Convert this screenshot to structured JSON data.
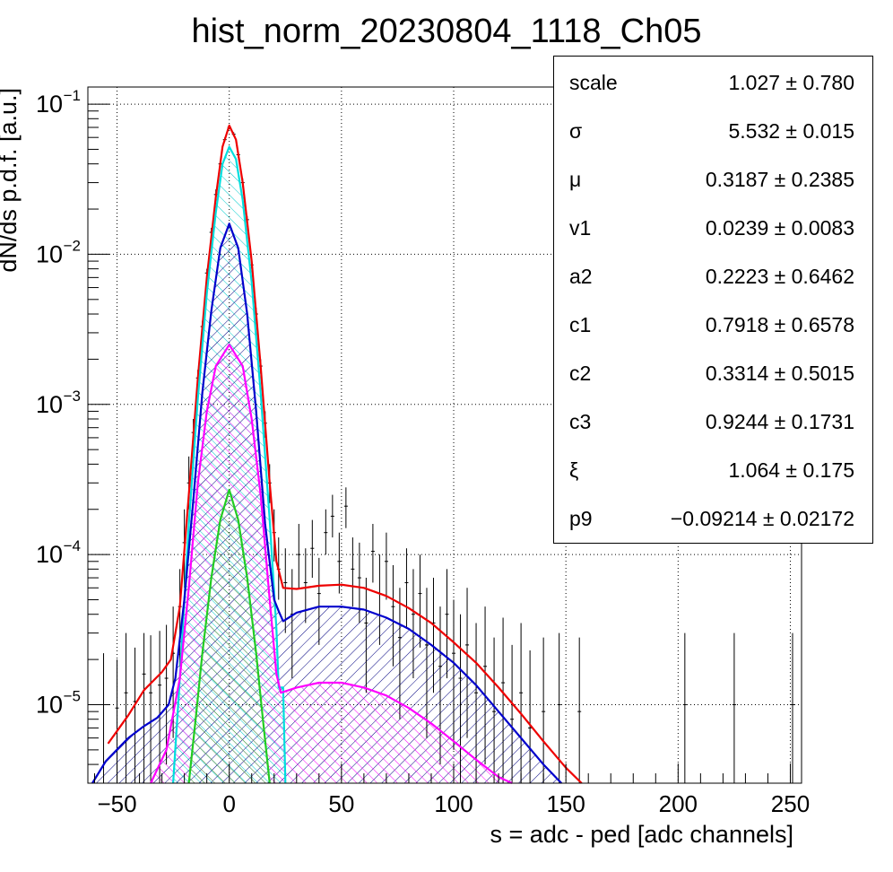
{
  "chart_data": {
    "type": "histogram-fit",
    "title": "hist_norm_20230804_1118_Ch05",
    "xlabel": "s = adc - ped [adc channels]",
    "ylabel": "dN/ds p.d.f. [a.u.]",
    "xlim": [
      -63,
      255
    ],
    "ylim": [
      3e-06,
      0.13
    ],
    "yscale": "log",
    "grid": true,
    "x_ticks": [
      -50,
      0,
      50,
      100,
      150,
      200,
      250
    ],
    "y_ticks": [
      {
        "value": 1e-05,
        "base": "10",
        "exp": "−5"
      },
      {
        "value": 0.0001,
        "base": "10",
        "exp": "−4"
      },
      {
        "value": 0.001,
        "base": "10",
        "exp": "−3"
      },
      {
        "value": 0.01,
        "base": "10",
        "exp": "−2"
      },
      {
        "value": 0.1,
        "base": "10",
        "exp": "−1"
      }
    ],
    "stats_box": [
      {
        "name": "scale",
        "value": "1.027",
        "error": "0.780"
      },
      {
        "name": "σ",
        "value": "5.532",
        "error": "0.015"
      },
      {
        "name": "μ",
        "value": "0.3187",
        "error": "0.2385"
      },
      {
        "name": "v1",
        "value": "0.0239",
        "error": "0.0083"
      },
      {
        "name": "a2",
        "value": "0.2223",
        "error": "0.6462"
      },
      {
        "name": "c1",
        "value": "0.7918",
        "error": "0.6578"
      },
      {
        "name": "c2",
        "value": "0.3314",
        "error": "0.5015"
      },
      {
        "name": "c3",
        "value": "0.9244",
        "error": "0.1731"
      },
      {
        "name": "ξ",
        "value": "1.064",
        "error": "0.175"
      },
      {
        "name": "p9",
        "value": "−0.09214",
        "error": "0.02172"
      }
    ],
    "series": [
      {
        "color": "#ee0000",
        "points": [
          [
            -54,
            5.5e-06
          ],
          [
            -45,
            8.5e-06
          ],
          [
            -38,
            1.25e-05
          ],
          [
            -30,
            1.65e-05
          ],
          [
            -26,
            2e-05
          ],
          [
            -22,
            4.5e-05
          ],
          [
            -18,
            0.00025
          ],
          [
            -14,
            0.0015
          ],
          [
            -10,
            0.007
          ],
          [
            -6,
            0.024
          ],
          [
            -3,
            0.052
          ],
          [
            0,
            0.072
          ],
          [
            3,
            0.058
          ],
          [
            6,
            0.03
          ],
          [
            10,
            0.009
          ],
          [
            14,
            0.0018
          ],
          [
            18,
            0.0003
          ],
          [
            21,
            9e-05
          ],
          [
            24,
            6e-05
          ],
          [
            30,
            5.9e-05
          ],
          [
            40,
            6.2e-05
          ],
          [
            50,
            6.3e-05
          ],
          [
            60,
            6e-05
          ],
          [
            70,
            5.3e-05
          ],
          [
            80,
            4.4e-05
          ],
          [
            90,
            3.5e-05
          ],
          [
            100,
            2.6e-05
          ],
          [
            110,
            1.9e-05
          ],
          [
            120,
            1.3e-05
          ],
          [
            130,
            8.7e-06
          ],
          [
            140,
            5.7e-06
          ],
          [
            150,
            3.8e-06
          ],
          [
            157,
            3e-06
          ]
        ]
      },
      {
        "color": "#00dddd",
        "fill": true,
        "points": [
          [
            -25,
            3e-06
          ],
          [
            -22,
            1.5e-05
          ],
          [
            -18,
            0.00016
          ],
          [
            -14,
            0.0011
          ],
          [
            -10,
            0.0055
          ],
          [
            -6,
            0.019
          ],
          [
            -3,
            0.04
          ],
          [
            0,
            0.052
          ],
          [
            3,
            0.043
          ],
          [
            6,
            0.023
          ],
          [
            10,
            0.0065
          ],
          [
            14,
            0.0012
          ],
          [
            18,
            0.00017
          ],
          [
            21,
            3.2e-05
          ],
          [
            22,
            1.3e-05
          ],
          [
            24,
            1.3e-05
          ],
          [
            25,
            3e-06
          ]
        ]
      },
      {
        "color": "#0000cc",
        "fill": true,
        "points": [
          [
            -61,
            3e-06
          ],
          [
            -55,
            4.2e-06
          ],
          [
            -45,
            6e-06
          ],
          [
            -38,
            7.2e-06
          ],
          [
            -32,
            8.2e-06
          ],
          [
            -27,
            1e-05
          ],
          [
            -24,
            1.5e-05
          ],
          [
            -20,
            5e-05
          ],
          [
            -16,
            0.00023
          ],
          [
            -12,
            0.0012
          ],
          [
            -8,
            0.0042
          ],
          [
            -4,
            0.011
          ],
          [
            0,
            0.016
          ],
          [
            4,
            0.011
          ],
          [
            8,
            0.004
          ],
          [
            12,
            0.0009
          ],
          [
            16,
            0.00016
          ],
          [
            20,
            5e-05
          ],
          [
            22,
            4.2e-05
          ],
          [
            24,
            3.6e-05
          ],
          [
            30,
            4.1e-05
          ],
          [
            40,
            4.5e-05
          ],
          [
            50,
            4.5e-05
          ],
          [
            60,
            4.3e-05
          ],
          [
            70,
            3.8e-05
          ],
          [
            80,
            3.2e-05
          ],
          [
            90,
            2.5e-05
          ],
          [
            100,
            1.9e-05
          ],
          [
            110,
            1.35e-05
          ],
          [
            120,
            9e-06
          ],
          [
            130,
            6e-06
          ],
          [
            140,
            4e-06
          ],
          [
            148,
            3e-06
          ]
        ]
      },
      {
        "color": "#ff00ff",
        "fill": true,
        "points": [
          [
            -35,
            3e-06
          ],
          [
            -28,
            5e-06
          ],
          [
            -22,
            1.5e-05
          ],
          [
            -18,
            6e-05
          ],
          [
            -14,
            0.0003
          ],
          [
            -10,
            0.0009
          ],
          [
            -6,
            0.0018
          ],
          [
            0,
            0.0025
          ],
          [
            6,
            0.0018
          ],
          [
            10,
            0.0008
          ],
          [
            14,
            0.00025
          ],
          [
            18,
            5e-05
          ],
          [
            21,
            1.6e-05
          ],
          [
            23,
            1.2e-05
          ],
          [
            30,
            1.3e-05
          ],
          [
            40,
            1.4e-05
          ],
          [
            50,
            1.4e-05
          ],
          [
            60,
            1.3e-05
          ],
          [
            70,
            1.15e-05
          ],
          [
            80,
            9.5e-06
          ],
          [
            90,
            7.5e-06
          ],
          [
            100,
            5.7e-06
          ],
          [
            110,
            4.3e-06
          ],
          [
            120,
            3.3e-06
          ],
          [
            126,
            3e-06
          ]
        ]
      },
      {
        "color": "#22cc22",
        "fill": true,
        "points": [
          [
            -18,
            3e-06
          ],
          [
            -15,
            8e-06
          ],
          [
            -12,
            2.2e-05
          ],
          [
            -8,
            7e-05
          ],
          [
            -4,
            0.00017
          ],
          [
            0,
            0.00027
          ],
          [
            4,
            0.00017
          ],
          [
            8,
            7e-05
          ],
          [
            12,
            2.2e-05
          ],
          [
            15,
            8e-06
          ],
          [
            18,
            3e-06
          ]
        ]
      }
    ],
    "data_points": [
      {
        "x": -56,
        "y": 1e-05,
        "lo": 3e-06,
        "hi": 2.2e-05
      },
      {
        "x": -50,
        "y": 9.5e-06,
        "lo": 3e-06,
        "hi": 2e-05
      },
      {
        "x": -46,
        "y": 1.2e-05,
        "lo": 3e-06,
        "hi": 3e-05
      },
      {
        "x": -42,
        "y": 1.05e-05,
        "lo": 3e-06,
        "hi": 2.4e-05
      },
      {
        "x": -38,
        "y": 1.6e-05,
        "lo": 3e-06,
        "hi": 3e-05
      },
      {
        "x": -35,
        "y": 1.2e-05,
        "lo": 3e-06,
        "hi": 2.9e-05
      },
      {
        "x": -31,
        "y": 1.35e-05,
        "lo": 3e-06,
        "hi": 3.1e-05
      },
      {
        "x": -28,
        "y": 1.5e-05,
        "lo": 4e-06,
        "hi": 3.4e-05
      },
      {
        "x": -25,
        "y": 2.2e-05,
        "lo": 6e-06,
        "hi": 4.5e-05
      },
      {
        "x": -22,
        "y": 4.5e-05,
        "lo": 1.8e-05,
        "hi": 8e-05
      },
      {
        "x": -20,
        "y": 0.00012,
        "lo": 6e-05,
        "hi": 0.0002
      },
      {
        "x": -18,
        "y": 0.0003,
        "lo": 0.0002,
        "hi": 0.00045
      },
      {
        "x": -16,
        "y": 0.00065,
        "lo": 0.0005,
        "hi": 0.0008
      },
      {
        "x": -14,
        "y": 0.0015,
        "lo": 0.0013,
        "hi": 0.0017
      },
      {
        "x": -12,
        "y": 0.0033,
        "lo": 0.003,
        "hi": 0.0036
      },
      {
        "x": -10,
        "y": 0.0075,
        "lo": 0.007,
        "hi": 0.008
      },
      {
        "x": -8,
        "y": 0.014,
        "lo": 0.013,
        "hi": 0.015
      },
      {
        "x": -6,
        "y": 0.025,
        "lo": 0.023,
        "hi": 0.027
      },
      {
        "x": -4,
        "y": 0.04,
        "lo": 0.038,
        "hi": 0.042
      },
      {
        "x": -2,
        "y": 0.058,
        "lo": 0.056,
        "hi": 0.06
      },
      {
        "x": 0,
        "y": 0.07,
        "lo": 0.068,
        "hi": 0.073
      },
      {
        "x": 2,
        "y": 0.063,
        "lo": 0.061,
        "hi": 0.065
      },
      {
        "x": 4,
        "y": 0.046,
        "lo": 0.044,
        "hi": 0.048
      },
      {
        "x": 6,
        "y": 0.03,
        "lo": 0.028,
        "hi": 0.032
      },
      {
        "x": 8,
        "y": 0.017,
        "lo": 0.016,
        "hi": 0.018
      },
      {
        "x": 10,
        "y": 0.0085,
        "lo": 0.008,
        "hi": 0.009
      },
      {
        "x": 12,
        "y": 0.004,
        "lo": 0.0036,
        "hi": 0.0044
      },
      {
        "x": 14,
        "y": 0.0018,
        "lo": 0.0016,
        "hi": 0.002
      },
      {
        "x": 16,
        "y": 0.00075,
        "lo": 0.0006,
        "hi": 0.0009
      },
      {
        "x": 18,
        "y": 0.0003,
        "lo": 0.00022,
        "hi": 0.0004
      },
      {
        "x": 20,
        "y": 0.00014,
        "lo": 9e-05,
        "hi": 0.0002
      },
      {
        "x": 22,
        "y": 8e-05,
        "lo": 5e-05,
        "hi": 0.00013
      },
      {
        "x": 25,
        "y": 6.5e-05,
        "lo": 3e-05,
        "hi": 0.00011
      },
      {
        "x": 28,
        "y": 4e-05,
        "lo": 1.5e-05,
        "hi": 8e-05
      },
      {
        "x": 31,
        "y": 0.0001,
        "lo": 6e-05,
        "hi": 0.00016
      },
      {
        "x": 34,
        "y": 6.5e-05,
        "lo": 3.5e-05,
        "hi": 0.00011
      },
      {
        "x": 37,
        "y": 0.00011,
        "lo": 7e-05,
        "hi": 0.00017
      },
      {
        "x": 40,
        "y": 5.5e-05,
        "lo": 2.5e-05,
        "hi": 9.5e-05
      },
      {
        "x": 43,
        "y": 0.00014,
        "lo": 0.0001,
        "hi": 0.0002
      },
      {
        "x": 46,
        "y": 0.00018,
        "lo": 0.00013,
        "hi": 0.00025
      },
      {
        "x": 49,
        "y": 9e-05,
        "lo": 5.5e-05,
        "hi": 0.00014
      },
      {
        "x": 52,
        "y": 0.00021,
        "lo": 0.00015,
        "hi": 0.00028
      },
      {
        "x": 55,
        "y": 8e-05,
        "lo": 4.5e-05,
        "hi": 0.00013
      },
      {
        "x": 58,
        "y": 7e-05,
        "lo": 3.5e-05,
        "hi": 0.00012
      },
      {
        "x": 61,
        "y": 3.5e-05,
        "lo": 1.2e-05,
        "hi": 7e-05
      },
      {
        "x": 64,
        "y": 0.000105,
        "lo": 6.5e-05,
        "hi": 0.00016
      },
      {
        "x": 67,
        "y": 5.5e-05,
        "lo": 2.5e-05,
        "hi": 0.0001
      },
      {
        "x": 70,
        "y": 9e-05,
        "lo": 5e-05,
        "hi": 0.00014
      },
      {
        "x": 73,
        "y": 4.5e-05,
        "lo": 1.8e-05,
        "hi": 8.5e-05
      },
      {
        "x": 76,
        "y": 2.8e-05,
        "lo": 8e-06,
        "hi": 6e-05
      },
      {
        "x": 79,
        "y": 6.5e-05,
        "lo": 3.2e-05,
        "hi": 0.00011
      },
      {
        "x": 82,
        "y": 4e-05,
        "lo": 1.5e-05,
        "hi": 8e-05
      },
      {
        "x": 85,
        "y": 5.5e-05,
        "lo": 2.4e-05,
        "hi": 0.0001
      },
      {
        "x": 88,
        "y": 2.5e-05,
        "lo": 6e-06,
        "hi": 6e-05
      },
      {
        "x": 91,
        "y": 3.5e-05,
        "lo": 1.2e-05,
        "hi": 7e-05
      },
      {
        "x": 94,
        "y": 1.8e-05,
        "lo": 4e-06,
        "hi": 4.5e-05
      },
      {
        "x": 97,
        "y": 4e-05,
        "lo": 1.5e-05,
        "hi": 8e-05
      },
      {
        "x": 100,
        "y": 2.2e-05,
        "lo": 5e-06,
        "hi": 5e-05
      },
      {
        "x": 103,
        "y": 1.5e-05,
        "lo": 3e-06,
        "hi": 4e-05
      },
      {
        "x": 106,
        "y": 2.5e-05,
        "lo": 6e-06,
        "hi": 6e-05
      },
      {
        "x": 110,
        "y": 1.2e-05,
        "lo": 3e-06,
        "hi": 3.5e-05
      },
      {
        "x": 114,
        "y": 1.8e-05,
        "lo": 4e-06,
        "hi": 4.5e-05
      },
      {
        "x": 118,
        "y": 9e-06,
        "lo": 3e-06,
        "hi": 2.8e-05
      },
      {
        "x": 122,
        "y": 1.4e-05,
        "lo": 3e-06,
        "hi": 3.8e-05
      },
      {
        "x": 126,
        "y": 8e-06,
        "lo": 3e-06,
        "hi": 2.5e-05
      },
      {
        "x": 130,
        "y": 1.2e-05,
        "lo": 3e-06,
        "hi": 3.5e-05
      },
      {
        "x": 134,
        "y": 7e-06,
        "lo": 3e-06,
        "hi": 2.3e-05
      },
      {
        "x": 140,
        "y": 9e-06,
        "lo": 3e-06,
        "hi": 2.8e-05
      },
      {
        "x": 147,
        "y": 1e-05,
        "lo": 3e-06,
        "hi": 3e-05
      },
      {
        "x": 156,
        "y": 9e-06,
        "lo": 3e-06,
        "hi": 2.8e-05
      },
      {
        "x": 203,
        "y": 1e-05,
        "lo": 3e-06,
        "hi": 3e-05
      },
      {
        "x": 225,
        "y": 1e-05,
        "lo": 3e-06,
        "hi": 3e-05
      },
      {
        "x": 251,
        "y": 1e-05,
        "lo": 3e-06,
        "hi": 3e-05
      }
    ]
  }
}
